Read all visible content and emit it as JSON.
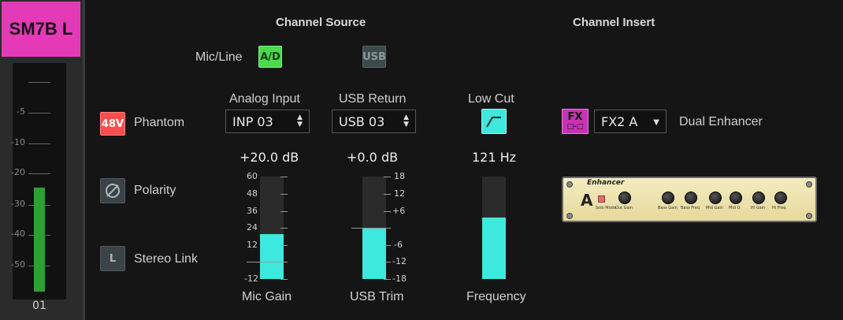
{
  "channel": {
    "name": "SM7B L",
    "number": "01",
    "name_color": "#e53ab8",
    "meter": {
      "scale": [
        "-5",
        "-10",
        "-20",
        "-30",
        "-40",
        "-50"
      ],
      "level_db": -31,
      "color": "#2fa02f"
    }
  },
  "channel_source": {
    "title": "Channel Source",
    "mic_line_label": "Mic/Line",
    "ad_button": "A/D",
    "usb_button": "USB",
    "phantom": {
      "button": "48V",
      "label": "Phantom",
      "color": "#ff4d4d"
    },
    "polarity": {
      "icon": "polarity-symbol-icon",
      "label": "Polarity"
    },
    "stereo_link": {
      "button": "L",
      "label": "Stereo Link"
    },
    "analog_input": {
      "header": "Analog Input",
      "value": "INP 03",
      "gain_readout": "+20.0 dB",
      "gain_fraction": 0.44,
      "scale": [
        "60",
        "48",
        "36",
        "24",
        "12",
        "-12"
      ],
      "footer": "Mic Gain"
    },
    "usb_return": {
      "header": "USB Return",
      "value": "USB 03",
      "trim_readout": "+0.0 dB",
      "trim_fraction": 0.5,
      "scale": [
        "18",
        "12",
        "+6",
        "-6",
        "-12",
        "-18"
      ],
      "footer": "USB Trim"
    },
    "low_cut": {
      "header": "Low Cut",
      "readout": "121 Hz",
      "frequency_fraction": 0.6,
      "footer": "Frequency"
    }
  },
  "channel_insert": {
    "title": "Channel Insert",
    "fx_button": "FX",
    "slot": "FX2 A",
    "effect_name": "Dual Enhancer",
    "plugin": {
      "brand": "Enhancer",
      "letter": "A",
      "knob_labels": [
        "Solo Mode",
        "Out Gain",
        "Bass Gain",
        "Bass Freq",
        "Mid Gain",
        "Mid Q",
        "Hi Gain",
        "Hi Freq"
      ]
    }
  },
  "colors": {
    "fader": "#3de8de",
    "ad_active": "#4cd94c",
    "accent": "#c733b5"
  }
}
